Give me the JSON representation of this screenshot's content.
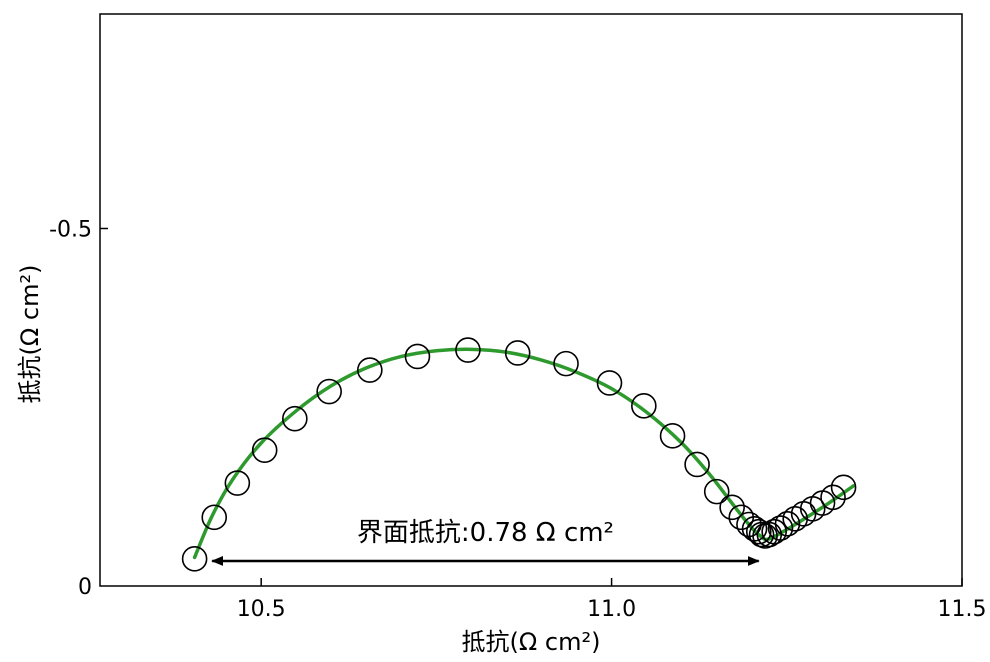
{
  "chart_data": {
    "type": "scatter",
    "xlabel": "抵抗(Ω cm²)",
    "ylabel": "抵抗(Ω cm²)",
    "xlim": [
      10.27,
      11.5
    ],
    "ylim": [
      0,
      -0.8
    ],
    "xticks": [
      10.5,
      11.0,
      11.5
    ],
    "xtick_labels": [
      "10.5",
      "11.0",
      "11.5"
    ],
    "yticks": [
      0,
      -0.5
    ],
    "ytick_labels": [
      "0",
      "-0.5"
    ],
    "grid": false,
    "legend": "none",
    "colors": {
      "fit": "#2e9a2e",
      "marker": "#000000"
    },
    "annotation": {
      "text": "界面抵抗:0.78 Ω cm²",
      "x_start": 10.43,
      "x_end": 11.21,
      "y": -0.035
    },
    "series": [
      {
        "kind": "measured",
        "marker": "open-circle",
        "x": [
          10.405,
          10.433,
          10.466,
          10.505,
          10.548,
          10.597,
          10.655,
          10.723,
          10.795,
          10.866,
          10.935,
          10.997,
          11.046,
          11.087,
          11.122,
          11.15,
          11.172,
          11.185,
          11.196,
          11.204,
          11.21,
          11.214,
          11.219,
          11.225,
          11.232,
          11.241,
          11.251,
          11.262,
          11.274,
          11.287,
          11.301,
          11.316,
          11.331
        ],
        "y": [
          -0.038,
          -0.096,
          -0.144,
          -0.19,
          -0.234,
          -0.272,
          -0.302,
          -0.321,
          -0.33,
          -0.326,
          -0.311,
          -0.284,
          -0.252,
          -0.21,
          -0.17,
          -0.132,
          -0.11,
          -0.096,
          -0.086,
          -0.08,
          -0.076,
          -0.072,
          -0.07,
          -0.072,
          -0.076,
          -0.081,
          -0.087,
          -0.094,
          -0.101,
          -0.108,
          -0.116,
          -0.124,
          -0.138
        ]
      },
      {
        "kind": "fit",
        "style": "line",
        "x": [
          10.405,
          10.43,
          10.46,
          10.5,
          10.55,
          10.6,
          10.65,
          10.7,
          10.75,
          10.8,
          10.85,
          10.9,
          10.95,
          11.0,
          11.05,
          11.1,
          11.14,
          11.17,
          11.19,
          11.205,
          11.215,
          11.22,
          11.23,
          11.25,
          11.28,
          11.31,
          11.345
        ],
        "y": [
          -0.04,
          -0.098,
          -0.15,
          -0.2,
          -0.245,
          -0.28,
          -0.305,
          -0.321,
          -0.329,
          -0.331,
          -0.327,
          -0.316,
          -0.299,
          -0.276,
          -0.243,
          -0.2,
          -0.156,
          -0.118,
          -0.093,
          -0.076,
          -0.068,
          -0.065,
          -0.068,
          -0.079,
          -0.097,
          -0.116,
          -0.14
        ]
      }
    ]
  }
}
